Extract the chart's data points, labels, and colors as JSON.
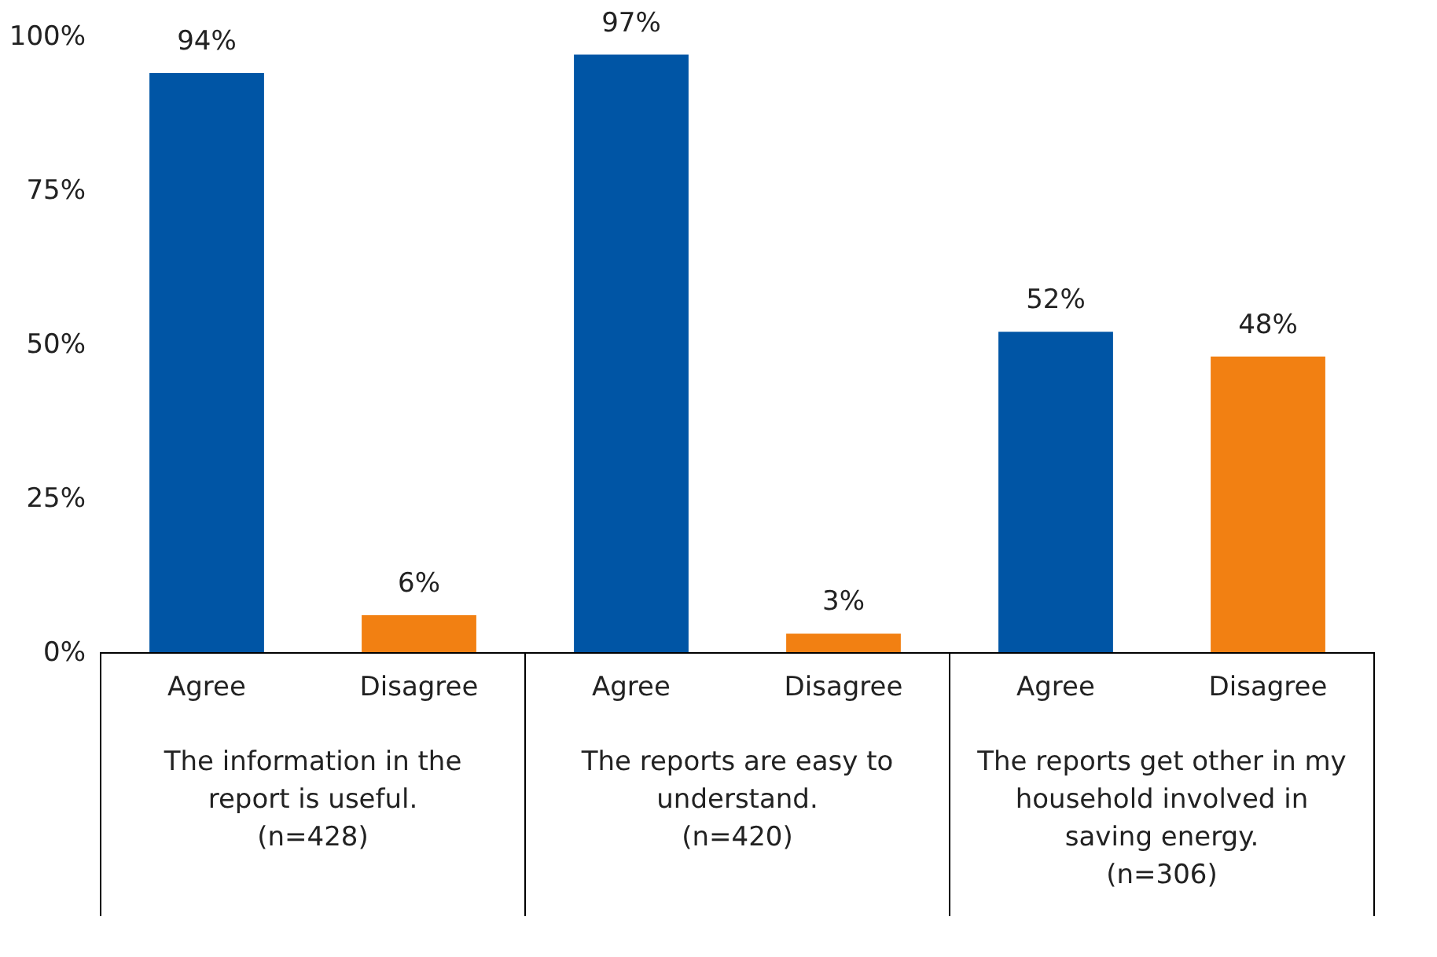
{
  "chart_data": {
    "type": "bar",
    "categories": [
      "Agree",
      "Disagree",
      "Agree",
      "Disagree",
      "Agree",
      "Disagree"
    ],
    "values": [
      94,
      6,
      97,
      3,
      52,
      48
    ],
    "colors": [
      "#0055a5",
      "#f28012",
      "#0055a5",
      "#f28012",
      "#0055a5",
      "#f28012"
    ],
    "value_labels": [
      "94%",
      "6%",
      "97%",
      "3%",
      "52%",
      "48%"
    ],
    "ylim": [
      0,
      100
    ],
    "yticks": [
      {
        "value": 0,
        "label": "0%"
      },
      {
        "value": 25,
        "label": "25%"
      },
      {
        "value": 50,
        "label": "50%"
      },
      {
        "value": 75,
        "label": "75%"
      },
      {
        "value": 100,
        "label": "100%"
      }
    ],
    "annotations": [
      "The information in the\nreport is useful.\n(n=428)",
      "The reports are easy to\nunderstand.\n(n=420)",
      "The reports get other in my\nhousehold involved in\nsaving energy.\n(n=306)"
    ],
    "grid": false
  }
}
